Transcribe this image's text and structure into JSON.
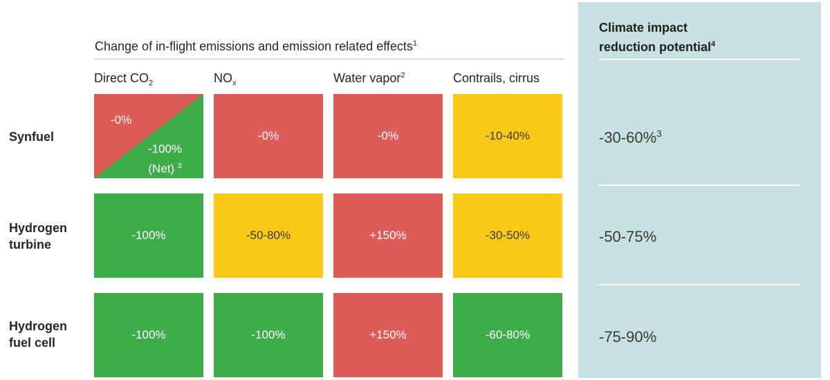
{
  "header": {
    "title": "Change of in-flight emissions and emission related effects",
    "title_sup": "1"
  },
  "columns": [
    {
      "label": "Direct CO",
      "sub": "2",
      "sup": ""
    },
    {
      "label": "NO",
      "sub": "x",
      "sup": ""
    },
    {
      "label": "Water vapor",
      "sub": "",
      "sup": "2"
    },
    {
      "label": "Contrails, cirrus",
      "sub": "",
      "sup": ""
    }
  ],
  "rows": [
    {
      "label_line1": "Synfuel",
      "label_line2": "",
      "cells": [
        {
          "value_top": "-0%",
          "value_bottom": "-100%",
          "note": "(Net)",
          "note_sup": "3",
          "colors": [
            "red",
            "green"
          ]
        },
        {
          "value": "-0%",
          "color": "red"
        },
        {
          "value": "-0%",
          "color": "red"
        },
        {
          "value": "-10-40%",
          "color": "yellow"
        }
      ],
      "impact": "-30-60%",
      "impact_sup": "3"
    },
    {
      "label_line1": "Hydrogen",
      "label_line2": "turbine",
      "cells": [
        {
          "value": "-100%",
          "color": "green"
        },
        {
          "value": "-50-80%",
          "color": "yellow"
        },
        {
          "value": "+150%",
          "color": "red"
        },
        {
          "value": "-30-50%",
          "color": "yellow"
        }
      ],
      "impact": "-50-75%",
      "impact_sup": ""
    },
    {
      "label_line1": "Hydrogen",
      "label_line2": "fuel cell",
      "cells": [
        {
          "value": "-100%",
          "color": "green"
        },
        {
          "value": "-100%",
          "color": "green"
        },
        {
          "value": "+150%",
          "color": "red"
        },
        {
          "value": "-60-80%",
          "color": "green"
        }
      ],
      "impact": "-75-90%",
      "impact_sup": ""
    }
  ],
  "panel": {
    "title_line1": "Climate impact",
    "title_line2": "reduction potential",
    "title_sup": "4"
  },
  "colors": {
    "red": "#dc5c58",
    "green": "#3eac4b",
    "yellow": "#fbc917",
    "panel": "#c6e1df"
  }
}
